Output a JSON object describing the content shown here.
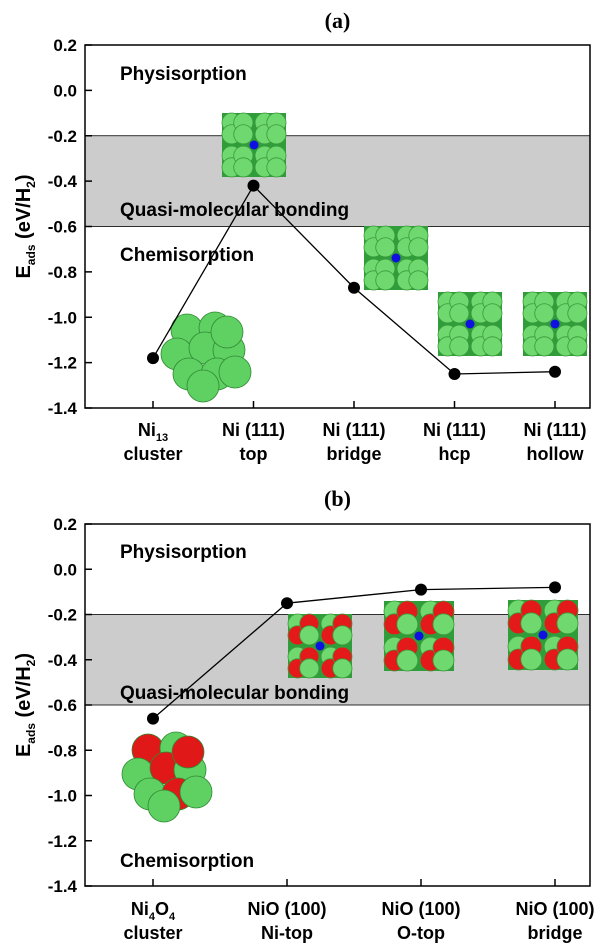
{
  "chart_data": [
    {
      "type": "line",
      "title": "(a)",
      "y_label": [
        "E",
        "ads",
        " (eV/H",
        "2",
        ")"
      ],
      "categories": [
        [
          [
            "Ni",
            "13"
          ],
          [
            "cluster"
          ]
        ],
        [
          [
            "Ni (111)"
          ],
          [
            "top"
          ]
        ],
        [
          [
            "Ni (111)"
          ],
          [
            "bridge"
          ]
        ],
        [
          [
            "Ni (111)"
          ],
          [
            "hcp"
          ]
        ],
        [
          [
            "Ni (111)"
          ],
          [
            "hollow"
          ]
        ]
      ],
      "series": [
        {
          "color": "#000000",
          "values": [
            -1.18,
            -0.42,
            -0.87,
            -1.25,
            -1.24
          ]
        }
      ],
      "ylim": [
        -1.4,
        0.2
      ],
      "yticks": [
        -1.4,
        -1.2,
        {
          "value": -1,
          "label": "-1.0"
        },
        -0.8,
        -0.6,
        -0.4,
        -0.2,
        {
          "value": 0,
          "label": "0.0"
        },
        0.2
      ],
      "band": {
        "range": [
          -0.6,
          -0.2
        ],
        "color": "#cccccc"
      },
      "annotations": [
        "Physisorption",
        "Quasi-molecular bonding",
        "Chemisorption"
      ]
    },
    {
      "type": "line",
      "title": "(b)",
      "y_label": [
        "E",
        "ads",
        " (eV/H",
        "2",
        ")"
      ],
      "categories": [
        [
          [
            "Ni",
            "4",
            "O",
            "4"
          ],
          [
            "cluster"
          ]
        ],
        [
          [
            "NiO (100)"
          ],
          [
            "Ni-top"
          ]
        ],
        [
          [
            "NiO (100)"
          ],
          [
            "O-top"
          ]
        ],
        [
          [
            "NiO (100)"
          ],
          [
            "bridge"
          ]
        ]
      ],
      "series": [
        {
          "color": "#000000",
          "values": [
            -0.66,
            -0.15,
            -0.09,
            -0.08
          ]
        }
      ],
      "ylim": [
        -1.4,
        0.2
      ],
      "yticks": [
        -1.4,
        -1.2,
        {
          "value": -1,
          "label": "-1.0"
        },
        -0.8,
        -0.6,
        -0.4,
        -0.2,
        {
          "value": 0,
          "label": "0.0"
        },
        0.2
      ],
      "band": {
        "range": [
          -0.6,
          -0.2
        ],
        "color": "#cccccc"
      },
      "annotations": [
        "Physisorption",
        "Quasi-molecular bonding",
        "Chemisorption"
      ]
    }
  ]
}
